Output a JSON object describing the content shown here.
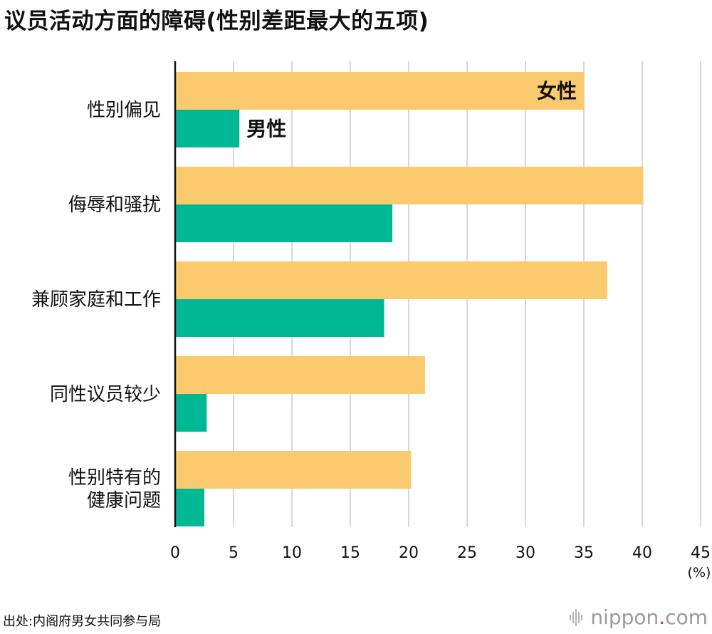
{
  "title": "议员活动方面的障碍(性别差距最大的五项)",
  "source": "出处:内阁府男女共同参与局",
  "brand": {
    "name": "nippon",
    "dot": ".",
    "suffix": "com"
  },
  "colors": {
    "female": "#fbc96e",
    "male": "#00b894",
    "grid": "#cccccc",
    "axis": "#111111"
  },
  "chart_data": {
    "type": "bar",
    "orientation": "horizontal",
    "title": "议员活动方面的障碍(性别差距最大的五项)",
    "categories": [
      [
        "性别偏见"
      ],
      [
        "侮辱和骚扰"
      ],
      [
        "兼顾家庭和工作"
      ],
      [
        "同性议员较少"
      ],
      [
        "性别特有的",
        "健康问题"
      ]
    ],
    "series": [
      {
        "name": "女性",
        "color": "#fbc96e",
        "values": [
          35.0,
          40.1,
          37.0,
          21.4,
          20.2
        ]
      },
      {
        "name": "男性",
        "color": "#00b894",
        "values": [
          5.5,
          18.6,
          17.9,
          2.7,
          2.5
        ]
      }
    ],
    "xlim": [
      0,
      45
    ],
    "xticks": [
      0,
      5,
      10,
      15,
      20,
      25,
      30,
      35,
      40,
      45
    ],
    "unit_label": "(%)",
    "grid": true,
    "legend": "inline labels on first category bars"
  }
}
